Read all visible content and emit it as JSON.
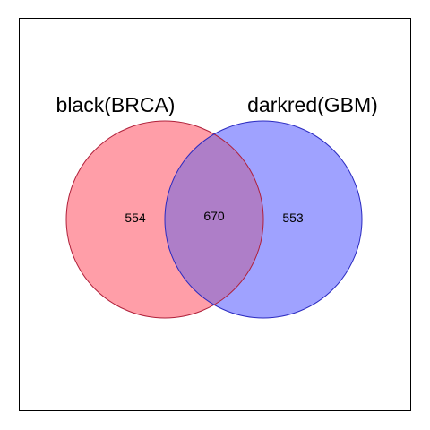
{
  "venn": {
    "sets": [
      {
        "label": "black(BRCA)",
        "fill": "#ff9ea8",
        "stroke": "#b0203a"
      },
      {
        "label": "darkred(GBM)",
        "fill": "#9fa2ff",
        "stroke": "#2a2ac0"
      }
    ],
    "overlap_fill": "#ae7ec8",
    "counts": {
      "left_only": "554",
      "both": "670",
      "right_only": "553"
    },
    "frame_color": "#000000"
  }
}
